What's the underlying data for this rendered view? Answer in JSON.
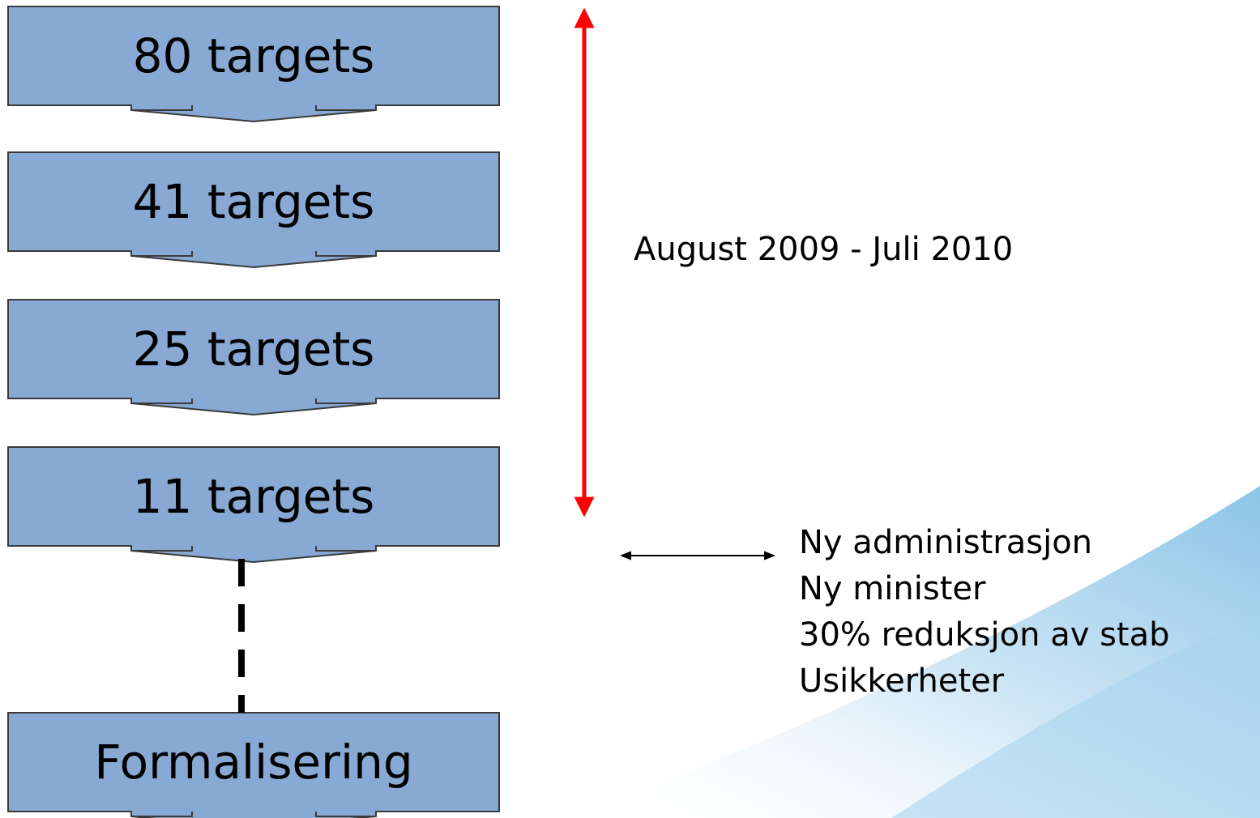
{
  "nodes": [
    {
      "label": "80 targets"
    },
    {
      "label": "41 targets"
    },
    {
      "label": "25 targets"
    },
    {
      "label": "11 targets"
    },
    {
      "label": "Formalisering"
    }
  ],
  "period": "August 2009 - Juli 2010",
  "notes": [
    "Ny administrasjon",
    "Ny minister",
    "30% reduksjon av stab",
    "Usikkerheter"
  ]
}
